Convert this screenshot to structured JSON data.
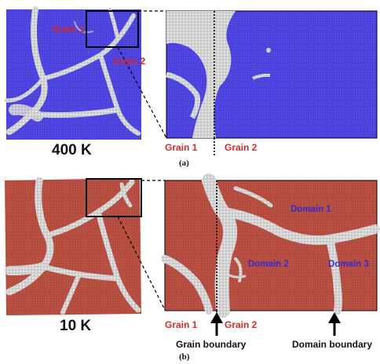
{
  "panel_a": {
    "temperature": "400 K",
    "caption": "(a)",
    "overview_grain_1": "Grain 1",
    "overview_grain_2": "Grain 2",
    "zoom_grain_1": "Grain 1",
    "zoom_grain_2": "Grain 2",
    "grain_color": "#4a3fdc"
  },
  "panel_b": {
    "temperature": "10 K",
    "caption": "(b)",
    "domain_1": "Domain 1",
    "domain_2": "Domain 2",
    "domain_3": "Domain 3",
    "zoom_grain_1": "Grain 1",
    "zoom_grain_2": "Grain 2",
    "grain_boundary": "Grain boundary",
    "domain_boundary": "Domain boundary",
    "grain_color": "#b14a3e"
  },
  "colors": {
    "boundary_atoms": "#cfcfcf",
    "label_red": "#d42a2a",
    "label_blue": "#3a2ad0"
  }
}
